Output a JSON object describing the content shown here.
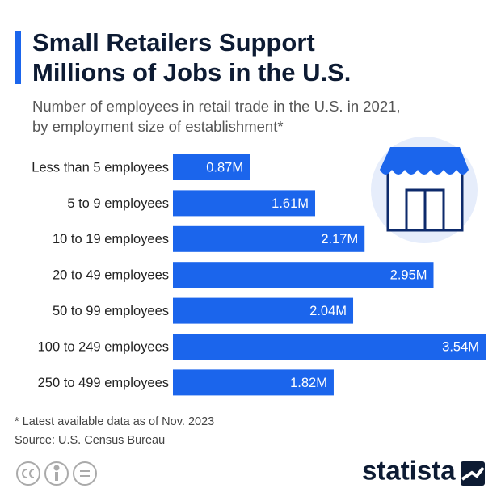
{
  "chart_data": {
    "type": "bar",
    "orientation": "horizontal",
    "title": [
      "Small Retailers Support",
      "Millions of Jobs in the U.S."
    ],
    "subtitle": [
      "Number of employees in retail trade in the U.S. in 2021,",
      "by employment size of establishment*"
    ],
    "categories": [
      "Less than 5 employees",
      "5 to 9 employees",
      "10 to 19 employees",
      "20 to 49 employees",
      "50 to 99 employees",
      "100 to 249 employees",
      "250 to 499 employees"
    ],
    "values": [
      0.87,
      1.61,
      2.17,
      2.95,
      2.04,
      3.54,
      1.82
    ],
    "value_labels": [
      "0.87M",
      "1.61M",
      "2.17M",
      "2.95M",
      "2.04M",
      "3.54M",
      "1.82M"
    ],
    "color": "#1b65ec",
    "footnote": "* Latest available data as of Nov. 2023",
    "source": "Source: U.S. Census Bureau",
    "brand": "statista"
  }
}
